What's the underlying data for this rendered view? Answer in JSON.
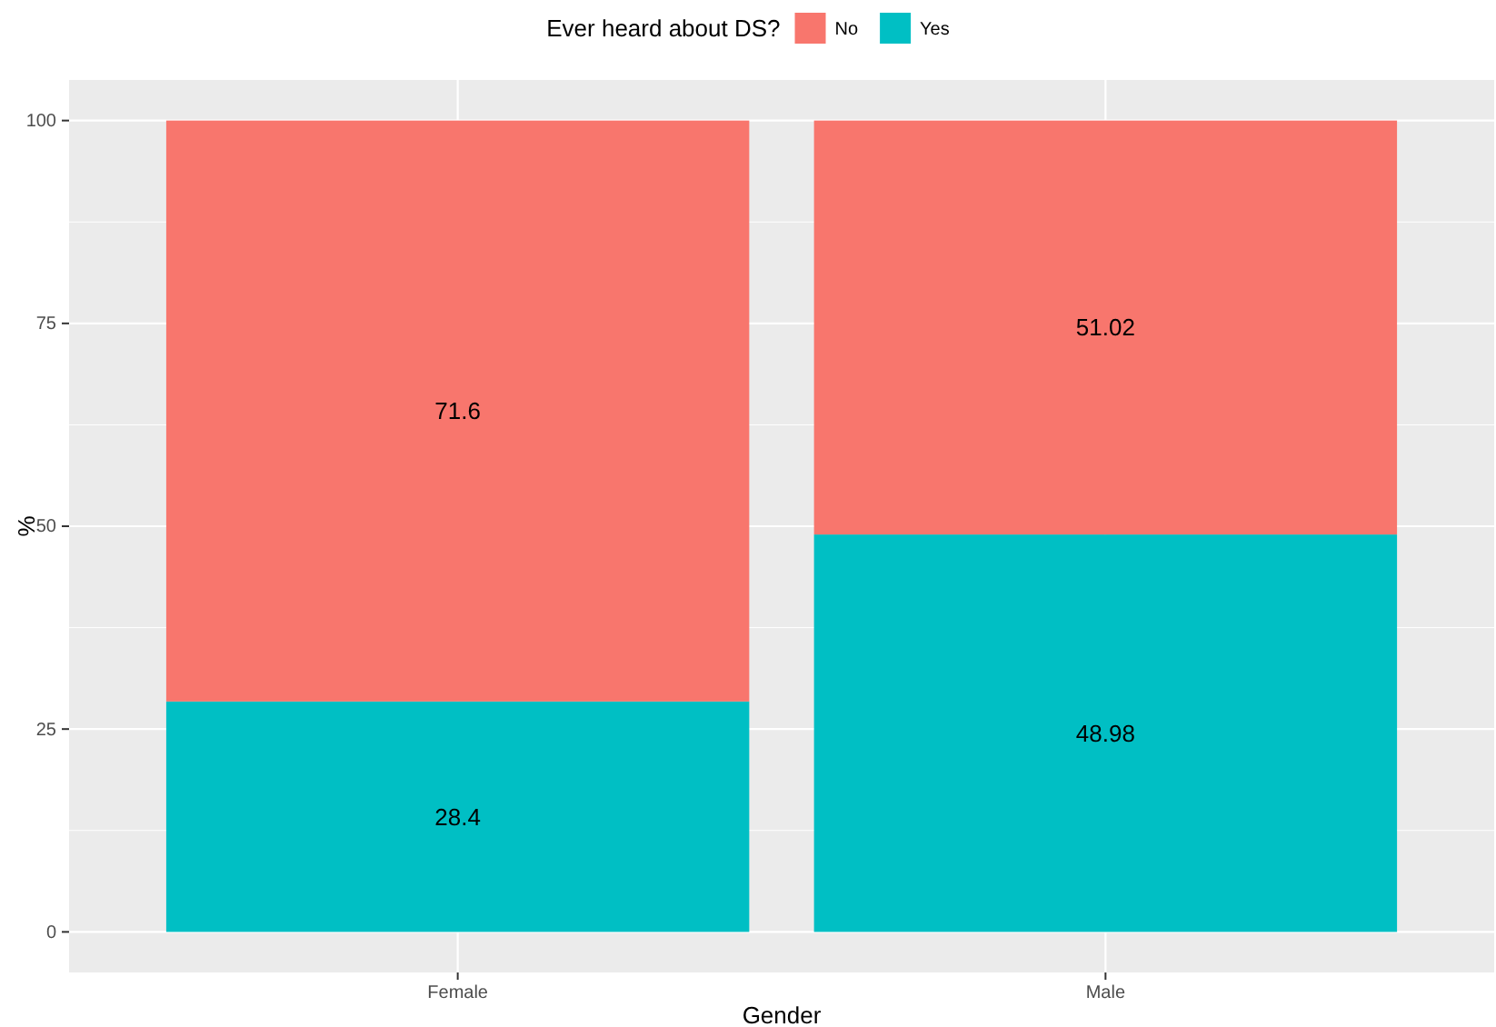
{
  "chart_data": {
    "type": "bar",
    "stacked": true,
    "xlabel": "Gender",
    "ylabel": "%",
    "legend_title": "Ever heard about DS?",
    "legend": "top",
    "grid": true,
    "data_labels": true,
    "categories": [
      "Female",
      "Male"
    ],
    "series": [
      {
        "name": "Yes",
        "color": "#00bfc4",
        "values": [
          28.4,
          48.98
        ]
      },
      {
        "name": "No",
        "color": "#f8766d",
        "values": [
          71.6,
          51.02
        ]
      }
    ],
    "ylim": [
      -5,
      105
    ],
    "yticks": [
      0,
      25,
      50,
      75,
      100
    ]
  }
}
